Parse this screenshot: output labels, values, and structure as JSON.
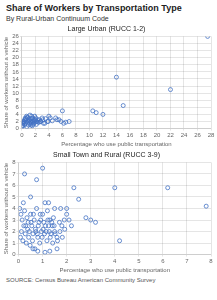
{
  "title": "Share of Workers by Transportation Type",
  "subtitle": "By Rural-Urban Continuum Code",
  "annotations": [
    "SOURCE: Census Bureau American Community Survey"
  ],
  "chart_data": [
    {
      "type": "scatter",
      "title": "Large Urban (RUCC 1-2)",
      "xlabel": "Percentage who use public transportation",
      "ylabel": "Share of workers without a vehicle",
      "xlim": [
        0,
        28
      ],
      "ylim": [
        0,
        26
      ],
      "xticks": [
        0,
        2,
        4,
        6,
        8,
        10,
        12,
        14,
        16,
        18,
        20,
        22,
        24,
        26,
        28
      ],
      "yticks": [
        0,
        2,
        4,
        6,
        8,
        10,
        12,
        14,
        16,
        18,
        20,
        22,
        24,
        26
      ],
      "grid": true,
      "color": "#4472C4",
      "marker": "circle",
      "x": [
        0.1,
        0.2,
        0.3,
        0.4,
        0.5,
        0.6,
        0.7,
        0.8,
        0.9,
        1.0,
        1.1,
        1.2,
        1.3,
        1.4,
        1.5,
        1.6,
        1.7,
        1.8,
        1.9,
        2.0,
        2.2,
        2.4,
        2.6,
        2.8,
        3.0,
        3.2,
        3.5,
        3.8,
        4.0,
        4.5,
        5.0,
        5.5,
        6.0,
        6.5,
        7.0,
        10.5,
        11.0,
        12.0,
        14.0,
        15.0,
        22.0,
        27.5,
        0.05,
        0.1,
        0.15,
        0.25,
        0.35,
        0.45,
        0.55,
        0.65,
        0.75,
        0.85,
        0.95,
        1.05,
        1.15,
        1.25,
        1.35,
        1.45,
        1.55,
        1.65,
        1.75,
        1.85,
        1.95,
        2.05,
        2.15,
        2.35,
        2.55,
        2.75,
        3.1,
        3.4,
        3.9,
        4.2,
        5.2,
        5.8,
        6.2
      ],
      "values": [
        1.5,
        2.0,
        1.8,
        2.5,
        3.0,
        2.8,
        3.5,
        3.2,
        2.2,
        1.8,
        2.5,
        3.8,
        2.0,
        1.5,
        2.8,
        3.0,
        1.2,
        2.2,
        3.5,
        2.5,
        2.0,
        1.8,
        2.5,
        2.0,
        3.0,
        1.5,
        2.8,
        2.0,
        3.5,
        2.2,
        3.0,
        2.5,
        5.0,
        1.8,
        2.0,
        5.0,
        4.5,
        4.0,
        14.5,
        6.5,
        11.0,
        26.0,
        0.5,
        1.0,
        0.8,
        1.5,
        2.0,
        1.2,
        2.5,
        1.8,
        0.5,
        3.0,
        1.0,
        2.2,
        1.5,
        2.8,
        1.0,
        3.5,
        0.8,
        2.0,
        1.5,
        2.5,
        1.8,
        3.0,
        1.2,
        2.5,
        1.8,
        2.0,
        2.5,
        1.5,
        2.0,
        3.0,
        2.5,
        2.0,
        1.5
      ]
    },
    {
      "type": "scatter",
      "title": "Small Town and Rural (RUCC 3-9)",
      "xlabel": "Percentage who use public transportation",
      "ylabel": "Share of workers without a vehicle",
      "xlim": [
        0,
        8
      ],
      "ylim": [
        0,
        8
      ],
      "xticks": [
        0,
        1,
        2,
        3,
        4,
        5,
        6,
        7,
        8
      ],
      "yticks": [
        0,
        1,
        2,
        3,
        4,
        5,
        6,
        7,
        8
      ],
      "grid": true,
      "color": "#4472C4",
      "marker": "circle",
      "x": [
        0.05,
        0.1,
        0.15,
        0.2,
        0.25,
        0.3,
        0.35,
        0.4,
        0.45,
        0.5,
        0.55,
        0.6,
        0.65,
        0.7,
        0.75,
        0.8,
        0.85,
        0.9,
        0.95,
        1.0,
        1.05,
        1.1,
        1.15,
        1.2,
        1.25,
        1.3,
        1.35,
        1.4,
        1.45,
        1.5,
        1.6,
        1.7,
        1.8,
        1.9,
        2.0,
        2.1,
        2.2,
        2.3,
        2.5,
        2.8,
        3.0,
        3.2,
        4.0,
        4.2,
        6.2,
        7.8,
        0.08,
        0.12,
        0.18,
        0.22,
        0.28,
        0.32,
        0.38,
        0.42,
        0.48,
        0.52,
        0.58,
        0.62,
        0.68,
        0.72,
        0.78,
        0.82,
        0.88,
        0.92,
        0.98,
        1.02,
        1.08,
        1.12,
        1.18,
        1.22,
        1.28,
        1.32,
        1.38,
        1.42,
        1.48,
        1.52,
        1.62,
        1.72,
        1.82,
        1.92,
        0.25,
        0.5,
        0.75,
        1.0,
        1.25,
        1.5,
        1.75,
        2.0,
        0.6,
        0.8,
        1.1,
        1.3,
        1.6
      ],
      "values": [
        4.0,
        3.5,
        3.0,
        4.5,
        3.8,
        2.5,
        3.2,
        2.8,
        2.0,
        3.5,
        2.5,
        1.8,
        3.0,
        2.2,
        4.0,
        1.5,
        2.8,
        3.5,
        2.0,
        3.5,
        2.8,
        4.5,
        2.0,
        3.8,
        2.5,
        3.0,
        1.8,
        2.5,
        3.2,
        2.0,
        1.5,
        2.8,
        2.5,
        3.0,
        3.5,
        3.0,
        2.5,
        5.8,
        4.8,
        3.2,
        3.0,
        2.8,
        5.8,
        1.2,
        5.8,
        4.2,
        1.5,
        2.0,
        1.2,
        2.5,
        1.8,
        1.0,
        2.2,
        1.5,
        0.8,
        2.8,
        1.2,
        3.5,
        0.5,
        2.0,
        1.8,
        2.5,
        1.0,
        3.0,
        1.5,
        2.2,
        1.8,
        2.5,
        1.2,
        3.0,
        2.0,
        1.5,
        2.8,
        1.0,
        2.5,
        1.8,
        1.2,
        2.0,
        1.5,
        2.2,
        7.0,
        5.0,
        6.5,
        7.5,
        4.5,
        4.0,
        4.0,
        4.0,
        0.5,
        0.3,
        0.2,
        0.3,
        0.5
      ]
    }
  ]
}
